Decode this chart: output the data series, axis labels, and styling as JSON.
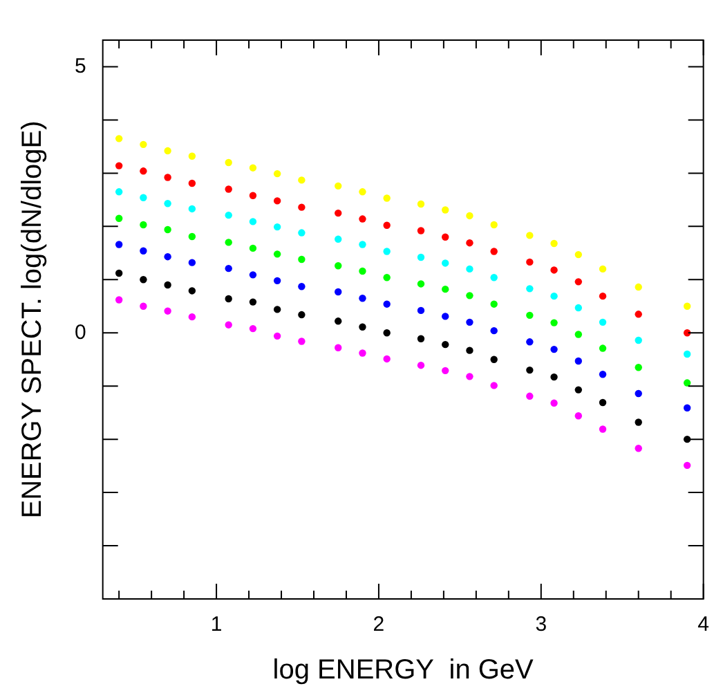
{
  "chart_data": {
    "type": "scatter",
    "xlabel": "log ENERGY  in GeV",
    "ylabel": "ENERGY SPECT. log(dN/dlogE)",
    "x": [
      0.4,
      0.55,
      0.7,
      0.85,
      1.075,
      1.225,
      1.375,
      1.525,
      1.75,
      1.9,
      2.05,
      2.26,
      2.41,
      2.56,
      2.71,
      2.93,
      3.08,
      3.23,
      3.38,
      3.6,
      3.9
    ],
    "xlim": [
      0.3,
      4
    ],
    "xticks": [
      {
        "value": 0.4,
        "label": null
      },
      {
        "value": 0.6,
        "label": null
      },
      {
        "value": 0.8,
        "label": null
      },
      1,
      {
        "value": 1.2,
        "label": null
      },
      {
        "value": 1.4,
        "label": null
      },
      {
        "value": 1.6,
        "label": null
      },
      {
        "value": 1.8,
        "label": null
      },
      2,
      {
        "value": 2.2,
        "label": null
      },
      {
        "value": 2.4,
        "label": null
      },
      {
        "value": 2.6,
        "label": null
      },
      {
        "value": 2.8,
        "label": null
      },
      3,
      {
        "value": 3.2,
        "label": null
      },
      {
        "value": 3.4,
        "label": null
      },
      {
        "value": 3.6,
        "label": null
      },
      {
        "value": 3.8,
        "label": null
      },
      4
    ],
    "ylim": [
      -5,
      5.5
    ],
    "yticks": [
      {
        "value": -4,
        "label": null
      },
      {
        "value": -3,
        "label": null
      },
      {
        "value": -2,
        "label": null
      },
      {
        "value": -1,
        "label": null
      },
      0,
      {
        "value": 1,
        "label": null
      },
      {
        "value": 2,
        "label": null
      },
      {
        "value": 3,
        "label": null
      },
      {
        "value": 4,
        "label": null
      },
      5
    ],
    "grid": false,
    "legend": false,
    "marker": "circle",
    "series": [
      {
        "color": "#ffff00",
        "values": [
          3.65,
          3.54,
          3.42,
          3.32,
          3.2,
          3.1,
          2.99,
          2.87,
          2.76,
          2.65,
          2.53,
          2.42,
          2.31,
          2.2,
          2.03,
          1.83,
          1.68,
          1.47,
          1.2,
          0.86,
          0.5
        ]
      },
      {
        "color": "#ff0000",
        "values": [
          3.14,
          3.04,
          2.92,
          2.81,
          2.7,
          2.58,
          2.48,
          2.36,
          2.25,
          2.14,
          2.02,
          1.92,
          1.8,
          1.69,
          1.53,
          1.33,
          1.18,
          0.96,
          0.69,
          0.35,
          0.0
        ]
      },
      {
        "color": "#00ffff",
        "values": [
          2.65,
          2.54,
          2.43,
          2.33,
          2.21,
          2.09,
          1.99,
          1.88,
          1.76,
          1.66,
          1.53,
          1.42,
          1.31,
          1.2,
          1.04,
          0.83,
          0.69,
          0.47,
          0.2,
          -0.14,
          -0.4
        ]
      },
      {
        "color": "#00ff00",
        "values": [
          2.15,
          2.03,
          1.94,
          1.81,
          1.7,
          1.59,
          1.48,
          1.38,
          1.26,
          1.16,
          1.04,
          0.92,
          0.82,
          0.7,
          0.54,
          0.33,
          0.19,
          -0.03,
          -0.29,
          -0.65,
          -0.94
        ]
      },
      {
        "color": "#0000ff",
        "values": [
          1.66,
          1.54,
          1.43,
          1.32,
          1.21,
          1.09,
          0.98,
          0.87,
          0.77,
          0.65,
          0.54,
          0.42,
          0.31,
          0.2,
          0.04,
          -0.17,
          -0.31,
          -0.53,
          -0.78,
          -1.14,
          -1.41
        ]
      },
      {
        "color": "#000000",
        "values": [
          1.12,
          1.0,
          0.9,
          0.79,
          0.64,
          0.58,
          0.44,
          0.34,
          0.22,
          0.11,
          0.0,
          -0.11,
          -0.22,
          -0.33,
          -0.5,
          -0.7,
          -0.83,
          -1.07,
          -1.31,
          -1.68,
          -2.0
        ]
      },
      {
        "color": "#ff00ff",
        "values": [
          0.62,
          0.5,
          0.41,
          0.3,
          0.15,
          0.08,
          -0.06,
          -0.16,
          -0.28,
          -0.38,
          -0.49,
          -0.61,
          -0.71,
          -0.82,
          -0.99,
          -1.19,
          -1.32,
          -1.56,
          -1.81,
          -2.17,
          -2.49
        ]
      }
    ]
  }
}
